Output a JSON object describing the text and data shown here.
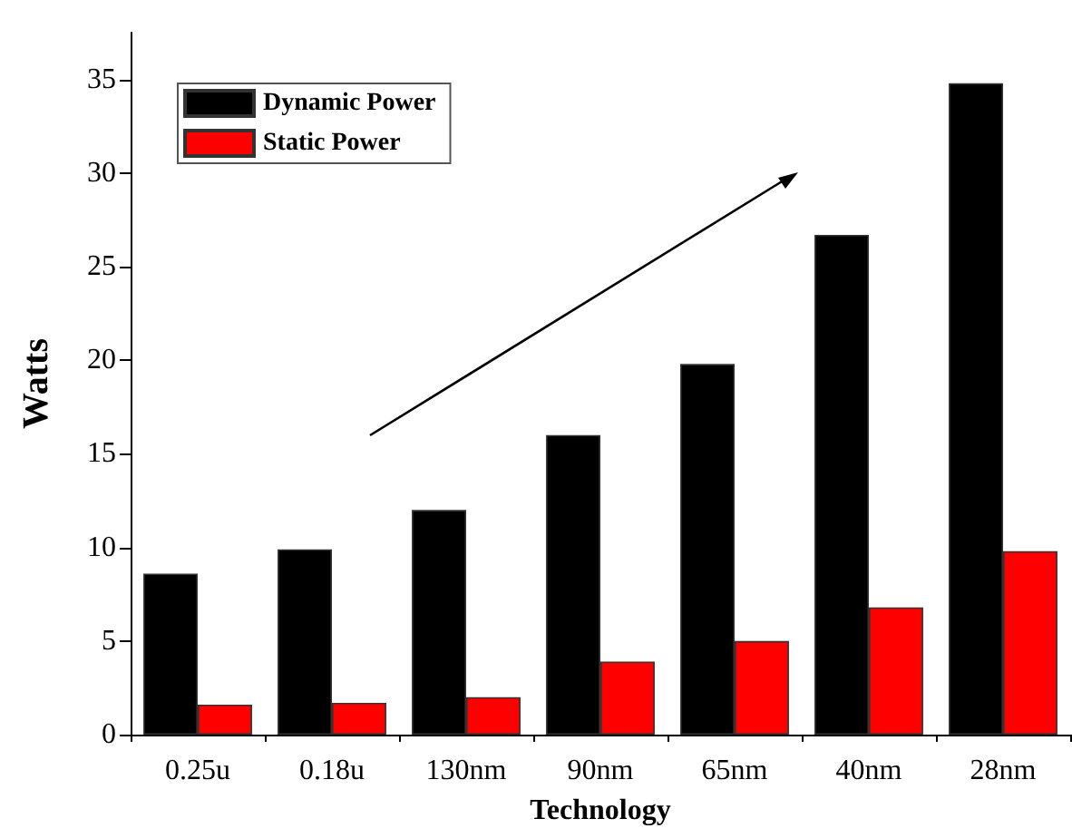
{
  "chart_data": {
    "type": "bar",
    "xlabel": "Technology",
    "ylabel": "Watts",
    "categories": [
      "0.25u",
      "0.18u",
      "130nm",
      "90nm",
      "65nm",
      "40nm",
      "28nm"
    ],
    "series": [
      {
        "name": "Dynamic Power",
        "color": "#000000",
        "values": [
          8.6,
          9.9,
          12.0,
          16.0,
          19.8,
          26.7,
          34.8
        ]
      },
      {
        "name": "Static Power",
        "color": "#ff0000",
        "values": [
          1.6,
          1.7,
          2.0,
          3.9,
          5.0,
          6.8,
          9.8
        ]
      }
    ],
    "ylim": [
      0,
      37.5
    ],
    "yticks": [
      0,
      5,
      10,
      15,
      20,
      25,
      30,
      35
    ],
    "grid": false,
    "legend": "top left"
  }
}
